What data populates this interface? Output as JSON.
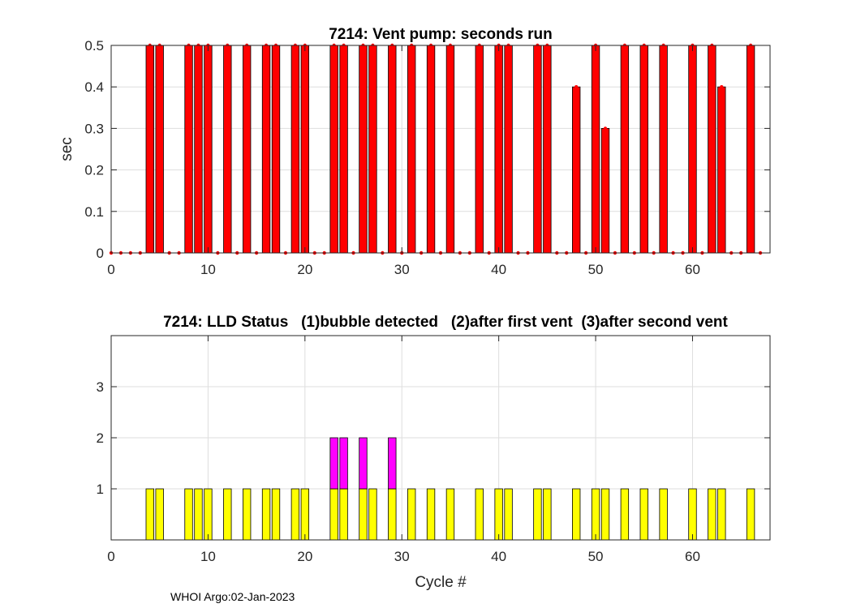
{
  "footer": "WHOI Argo:02-Jan-2023",
  "chart_data": [
    {
      "type": "bar",
      "title": "7214: Vent pump: seconds run",
      "xlabel": "",
      "ylabel": "sec",
      "xlim": [
        0,
        68
      ],
      "ylim": [
        0,
        0.5
      ],
      "xticks": [
        0,
        10,
        20,
        30,
        40,
        50,
        60
      ],
      "yticks": [
        0,
        0.1,
        0.2,
        0.3,
        0.4,
        0.5
      ],
      "ytick_labels": [
        "0",
        "0.1",
        "0.2",
        "0.3",
        "0.4",
        "0.5"
      ],
      "grid": true,
      "bar_color": "#ff0000",
      "marker_color": "#ff0000",
      "x": [
        0,
        1,
        2,
        3,
        4,
        5,
        6,
        7,
        8,
        9,
        10,
        11,
        12,
        13,
        14,
        15,
        16,
        17,
        18,
        19,
        20,
        21,
        22,
        23,
        24,
        25,
        26,
        27,
        28,
        29,
        30,
        31,
        32,
        33,
        34,
        35,
        36,
        37,
        38,
        39,
        40,
        41,
        42,
        43,
        44,
        45,
        46,
        47,
        48,
        49,
        50,
        51,
        52,
        53,
        54,
        55,
        56,
        57,
        58,
        59,
        60,
        61,
        62,
        63,
        64,
        65,
        66,
        67
      ],
      "values": [
        0,
        0,
        0,
        0,
        0.5,
        0.5,
        0,
        0,
        0.5,
        0.5,
        0.5,
        0,
        0.5,
        0,
        0.5,
        0,
        0.5,
        0.5,
        0,
        0.5,
        0.5,
        0,
        0,
        0.5,
        0.5,
        0,
        0.5,
        0.5,
        0,
        0.5,
        0,
        0.5,
        0,
        0.5,
        0,
        0.5,
        0,
        0,
        0.5,
        0,
        0.5,
        0.5,
        0,
        0,
        0.5,
        0.5,
        0,
        0,
        0.4,
        0,
        0.5,
        0.3,
        0,
        0.5,
        0,
        0.5,
        0,
        0.5,
        0,
        0,
        0.5,
        0,
        0.5,
        0.4,
        0,
        0,
        0.5,
        0
      ]
    },
    {
      "type": "bar",
      "stacked": true,
      "title": "7214: LLD Status   (1)bubble detected   (2)after first vent  (3)after second vent",
      "xlabel": "Cycle #",
      "ylabel": "",
      "xlim": [
        0,
        68
      ],
      "ylim": [
        0,
        4
      ],
      "xticks": [
        0,
        10,
        20,
        30,
        40,
        50,
        60
      ],
      "yticks": [
        1,
        2,
        3
      ],
      "grid": true,
      "series": [
        {
          "name": "(1)bubble detected",
          "color": "#ffff00",
          "x": [
            4,
            5,
            8,
            9,
            10,
            12,
            14,
            16,
            17,
            19,
            20,
            23,
            24,
            26,
            27,
            29,
            31,
            33,
            35,
            38,
            40,
            41,
            44,
            45,
            48,
            50,
            51,
            53,
            55,
            57,
            60,
            62,
            63,
            66
          ],
          "values": [
            1,
            1,
            1,
            1,
            1,
            1,
            1,
            1,
            1,
            1,
            1,
            1,
            1,
            1,
            1,
            1,
            1,
            1,
            1,
            1,
            1,
            1,
            1,
            1,
            1,
            1,
            1,
            1,
            1,
            1,
            1,
            1,
            1,
            1
          ]
        },
        {
          "name": "(2)after first vent",
          "color": "#ff00ff",
          "x": [
            23,
            24,
            26,
            29
          ],
          "values": [
            1,
            1,
            1,
            1
          ]
        }
      ]
    }
  ]
}
